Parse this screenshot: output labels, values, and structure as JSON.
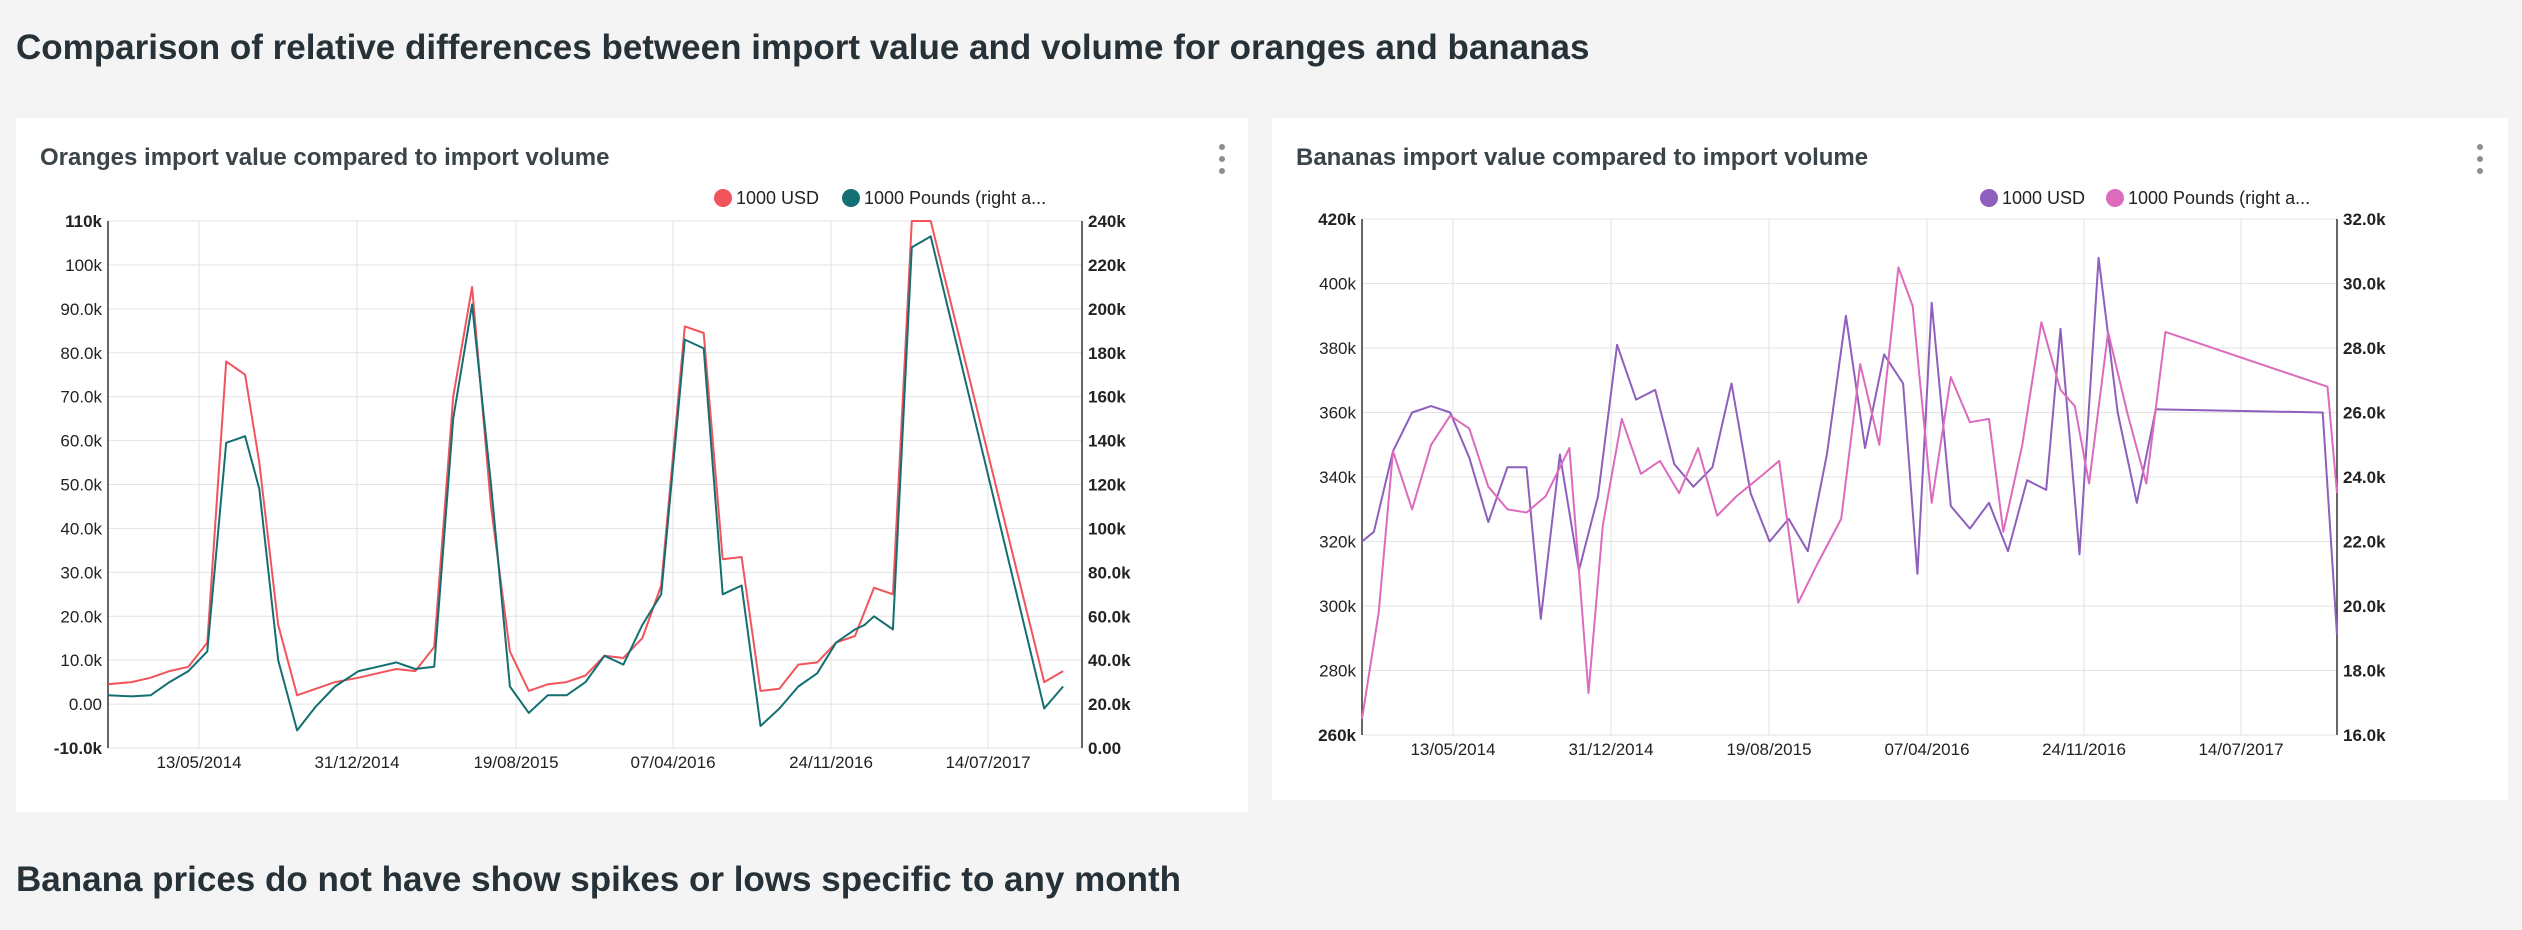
{
  "page": {
    "heading_top": "Comparison of relative differences between import value and volume for oranges and bananas",
    "heading_bottom": "Banana prices do not have show spikes or lows specific to any month"
  },
  "chart_data": [
    {
      "type": "line",
      "title": "Oranges import value compared to import volume",
      "legend": "top-right",
      "grid": true,
      "x_tick_labels": [
        "13/05/2014",
        "31/12/2014",
        "19/08/2015",
        "07/04/2016",
        "24/11/2016",
        "14/07/2017"
      ],
      "y_left": {
        "ylim": [
          -10000,
          110000
        ],
        "ticks": [
          "-10.0k",
          "0.00",
          "10.0k",
          "20.0k",
          "30.0k",
          "40.0k",
          "50.0k",
          "60.0k",
          "70.0k",
          "80.0k",
          "90.0k",
          "100k",
          "110k"
        ]
      },
      "y_right": {
        "ylim": [
          0,
          240000
        ],
        "ticks": [
          "0.00",
          "20.0k",
          "40.0k",
          "60.0k",
          "80.0k",
          "100k",
          "120k",
          "140k",
          "160k",
          "180k",
          "200k",
          "220k",
          "240k"
        ]
      },
      "x_range": [
        2013.78,
        2017.9
      ],
      "series": [
        {
          "name": "1000 USD",
          "color": "#f2545b",
          "axis": "left",
          "points": [
            [
              2013.78,
              4500
            ],
            [
              2013.88,
              5000
            ],
            [
              2013.96,
              6000
            ],
            [
              2014.04,
              7500
            ],
            [
              2014.12,
              8500
            ],
            [
              2014.2,
              14000
            ],
            [
              2014.28,
              78000
            ],
            [
              2014.36,
              75000
            ],
            [
              2014.42,
              55000
            ],
            [
              2014.5,
              18000
            ],
            [
              2014.58,
              2000
            ],
            [
              2014.66,
              3500
            ],
            [
              2014.74,
              5000
            ],
            [
              2014.84,
              6000
            ],
            [
              2014.92,
              7000
            ],
            [
              2015.0,
              8000
            ],
            [
              2015.08,
              7500
            ],
            [
              2015.16,
              13000
            ],
            [
              2015.24,
              70000
            ],
            [
              2015.32,
              95000
            ],
            [
              2015.4,
              45000
            ],
            [
              2015.48,
              12000
            ],
            [
              2015.56,
              3000
            ],
            [
              2015.64,
              4500
            ],
            [
              2015.72,
              5000
            ],
            [
              2015.8,
              6500
            ],
            [
              2015.88,
              11000
            ],
            [
              2015.96,
              10500
            ],
            [
              2016.04,
              15000
            ],
            [
              2016.12,
              27000
            ],
            [
              2016.22,
              86000
            ],
            [
              2016.3,
              84500
            ],
            [
              2016.38,
              33000
            ],
            [
              2016.46,
              33500
            ],
            [
              2016.54,
              3000
            ],
            [
              2016.62,
              3500
            ],
            [
              2016.7,
              9000
            ],
            [
              2016.78,
              9500
            ],
            [
              2016.86,
              14000
            ],
            [
              2016.94,
              15500
            ],
            [
              2017.02,
              26500
            ],
            [
              2017.1,
              25000
            ],
            [
              2017.18,
              110000
            ],
            [
              2017.26,
              110000
            ],
            [
              2017.74,
              5000
            ],
            [
              2017.82,
              7500
            ]
          ]
        },
        {
          "name": "1000 Pounds (right a...",
          "color": "#136f72",
          "axis": "right",
          "points": [
            [
              2013.78,
              24000
            ],
            [
              2013.88,
              23500
            ],
            [
              2013.96,
              24000
            ],
            [
              2014.04,
              30000
            ],
            [
              2014.12,
              35000
            ],
            [
              2014.2,
              44000
            ],
            [
              2014.28,
              139000
            ],
            [
              2014.36,
              142000
            ],
            [
              2014.42,
              118000
            ],
            [
              2014.5,
              40000
            ],
            [
              2014.58,
              8000
            ],
            [
              2014.66,
              19000
            ],
            [
              2014.74,
              28000
            ],
            [
              2014.84,
              35000
            ],
            [
              2014.92,
              37000
            ],
            [
              2015.0,
              39000
            ],
            [
              2015.08,
              36000
            ],
            [
              2015.16,
              37000
            ],
            [
              2015.24,
              150000
            ],
            [
              2015.32,
              202000
            ],
            [
              2015.4,
              120000
            ],
            [
              2015.48,
              28000
            ],
            [
              2015.56,
              16000
            ],
            [
              2015.64,
              24000
            ],
            [
              2015.72,
              24000
            ],
            [
              2015.8,
              30000
            ],
            [
              2015.88,
              42000
            ],
            [
              2015.96,
              38000
            ],
            [
              2016.04,
              56000
            ],
            [
              2016.12,
              70000
            ],
            [
              2016.22,
              186000
            ],
            [
              2016.3,
              182000
            ],
            [
              2016.38,
              70000
            ],
            [
              2016.46,
              74000
            ],
            [
              2016.54,
              10000
            ],
            [
              2016.62,
              18000
            ],
            [
              2016.7,
              28000
            ],
            [
              2016.78,
              34000
            ],
            [
              2016.86,
              48000
            ],
            [
              2016.94,
              54000
            ],
            [
              2016.98,
              56000
            ],
            [
              2017.02,
              60000
            ],
            [
              2017.1,
              54000
            ],
            [
              2017.18,
              228000
            ],
            [
              2017.26,
              233000
            ],
            [
              2017.74,
              18000
            ],
            [
              2017.82,
              28000
            ]
          ]
        }
      ]
    },
    {
      "type": "line",
      "title": "Bananas import value compared to import volume",
      "legend": "top-right",
      "grid": true,
      "x_tick_labels": [
        "13/05/2014",
        "31/12/2014",
        "19/08/2015",
        "07/04/2016",
        "24/11/2016",
        "14/07/2017"
      ],
      "y_left": {
        "ylim": [
          260000,
          420000
        ],
        "ticks": [
          "260k",
          "280k",
          "300k",
          "320k",
          "340k",
          "360k",
          "380k",
          "400k",
          "420k"
        ]
      },
      "y_right": {
        "ylim": [
          16000,
          32000
        ],
        "ticks": [
          "16.0k",
          "18.0k",
          "20.0k",
          "22.0k",
          "24.0k",
          "26.0k",
          "28.0k",
          "30.0k",
          "32.0k"
        ]
      },
      "x_range": [
        2013.83,
        2017.92
      ],
      "series": [
        {
          "name": "1000 USD",
          "color": "#8e5fbd",
          "axis": "left",
          "points": [
            [
              2013.83,
              320000
            ],
            [
              2013.88,
              323000
            ],
            [
              2013.96,
              348000
            ],
            [
              2014.04,
              360000
            ],
            [
              2014.12,
              362000
            ],
            [
              2014.2,
              360000
            ],
            [
              2014.28,
              346000
            ],
            [
              2014.36,
              326000
            ],
            [
              2014.44,
              343000
            ],
            [
              2014.52,
              343000
            ],
            [
              2014.58,
              296000
            ],
            [
              2014.66,
              347000
            ],
            [
              2014.74,
              311000
            ],
            [
              2014.82,
              334000
            ],
            [
              2014.9,
              381000
            ],
            [
              2014.98,
              364000
            ],
            [
              2015.06,
              367000
            ],
            [
              2015.14,
              344000
            ],
            [
              2015.22,
              337000
            ],
            [
              2015.3,
              343000
            ],
            [
              2015.38,
              369000
            ],
            [
              2015.46,
              335000
            ],
            [
              2015.54,
              320000
            ],
            [
              2015.62,
              327000
            ],
            [
              2015.7,
              317000
            ],
            [
              2015.78,
              347000
            ],
            [
              2015.86,
              390000
            ],
            [
              2015.94,
              349000
            ],
            [
              2016.02,
              378000
            ],
            [
              2016.1,
              369000
            ],
            [
              2016.16,
              310000
            ],
            [
              2016.22,
              394000
            ],
            [
              2016.3,
              331000
            ],
            [
              2016.38,
              324000
            ],
            [
              2016.46,
              332000
            ],
            [
              2016.54,
              317000
            ],
            [
              2016.62,
              339000
            ],
            [
              2016.7,
              336000
            ],
            [
              2016.76,
              386000
            ],
            [
              2016.84,
              316000
            ],
            [
              2016.92,
              408000
            ],
            [
              2017.0,
              360000
            ],
            [
              2017.08,
              332000
            ],
            [
              2017.16,
              361000
            ],
            [
              2017.86,
              360000
            ],
            [
              2017.92,
              291000
            ]
          ]
        },
        {
          "name": "1000 Pounds (right a...",
          "color": "#dd6bbd",
          "axis": "right",
          "points": [
            [
              2013.83,
              16500
            ],
            [
              2013.9,
              19800
            ],
            [
              2013.96,
              24800
            ],
            [
              2014.04,
              23000
            ],
            [
              2014.12,
              25000
            ],
            [
              2014.2,
              25900
            ],
            [
              2014.28,
              25500
            ],
            [
              2014.36,
              23700
            ],
            [
              2014.44,
              23000
            ],
            [
              2014.52,
              22900
            ],
            [
              2014.6,
              23400
            ],
            [
              2014.7,
              24900
            ],
            [
              2014.78,
              17300
            ],
            [
              2014.84,
              22500
            ],
            [
              2014.92,
              25800
            ],
            [
              2015.0,
              24100
            ],
            [
              2015.08,
              24500
            ],
            [
              2015.16,
              23500
            ],
            [
              2015.24,
              24900
            ],
            [
              2015.32,
              22800
            ],
            [
              2015.4,
              23400
            ],
            [
              2015.5,
              24000
            ],
            [
              2015.58,
              24500
            ],
            [
              2015.66,
              20100
            ],
            [
              2015.74,
              21300
            ],
            [
              2015.84,
              22700
            ],
            [
              2015.92,
              27500
            ],
            [
              2016.0,
              25000
            ],
            [
              2016.08,
              30500
            ],
            [
              2016.14,
              29300
            ],
            [
              2016.22,
              23200
            ],
            [
              2016.3,
              27100
            ],
            [
              2016.38,
              25700
            ],
            [
              2016.46,
              25800
            ],
            [
              2016.52,
              22300
            ],
            [
              2016.6,
              25000
            ],
            [
              2016.68,
              28800
            ],
            [
              2016.76,
              26700
            ],
            [
              2016.82,
              26200
            ],
            [
              2016.88,
              23800
            ],
            [
              2016.96,
              28500
            ],
            [
              2017.04,
              26000
            ],
            [
              2017.12,
              23800
            ],
            [
              2017.2,
              28500
            ],
            [
              2017.88,
              26800
            ],
            [
              2017.92,
              23500
            ]
          ]
        }
      ]
    }
  ]
}
